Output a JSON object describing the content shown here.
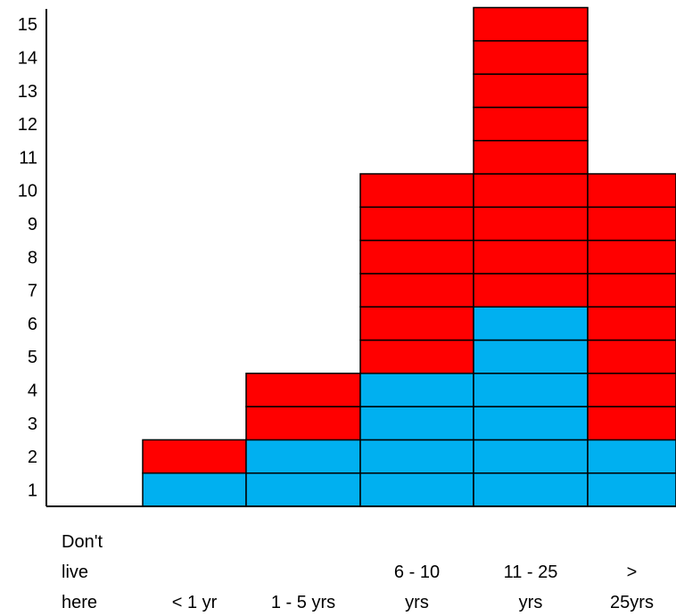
{
  "chart_data": {
    "type": "bar",
    "stacked": true,
    "categories": [
      [
        "Don't",
        "live",
        "here"
      ],
      [
        "< 1 yr"
      ],
      [
        "1 - 5 yrs"
      ],
      [
        "6 - 10",
        "yrs"
      ],
      [
        "11 - 25",
        "yrs"
      ],
      [
        ">",
        "25yrs"
      ]
    ],
    "series": [
      {
        "color": "#00b0f0",
        "values": [
          0,
          1,
          2,
          4,
          6,
          2
        ]
      },
      {
        "color": "#ff0000",
        "values": [
          0,
          1,
          2,
          6,
          9,
          8
        ]
      }
    ],
    "ylim": [
      0,
      15
    ],
    "yticks": [
      1,
      2,
      3,
      4,
      5,
      6,
      7,
      8,
      9,
      10,
      11,
      12,
      13,
      14,
      15
    ],
    "grid": false,
    "legend": "none"
  }
}
